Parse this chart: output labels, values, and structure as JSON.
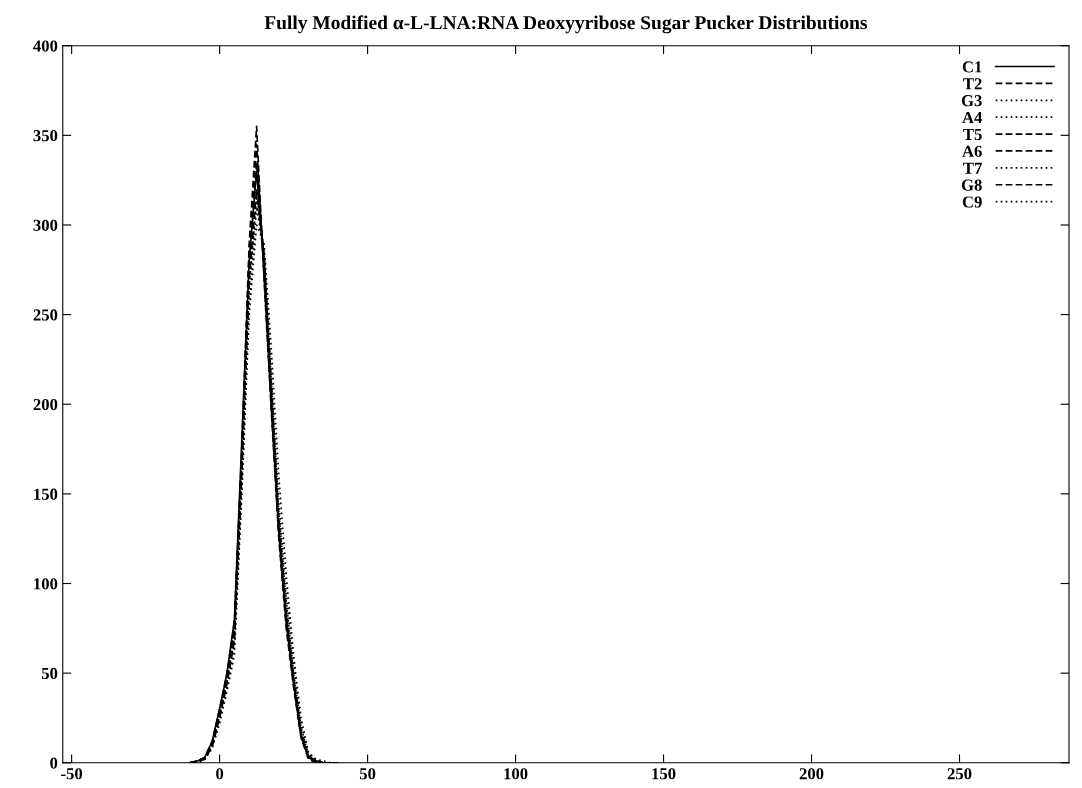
{
  "chart_data": {
    "type": "line",
    "title": "Fully Modified α-L-LNA:RNA Deoxyyribose Sugar Pucker Distributions",
    "x": [
      -10,
      -7.5,
      -5,
      -2.5,
      0,
      2.5,
      5,
      7.5,
      10,
      12.5,
      15,
      17.5,
      20,
      22.5,
      25,
      27.5,
      30,
      32.5,
      35,
      37.5,
      40
    ],
    "series": [
      {
        "name": "C1",
        "color": "#000000",
        "line_style": "solid",
        "values": [
          0,
          1,
          3,
          12,
          30,
          50,
          80,
          180,
          280,
          330,
          280,
          200,
          130,
          80,
          45,
          15,
          3,
          1,
          0,
          0,
          0
        ]
      },
      {
        "name": "T2",
        "color": "#000000",
        "line_style": "dashed",
        "values": [
          0,
          1,
          2,
          10,
          28,
          48,
          75,
          170,
          270,
          320,
          285,
          210,
          135,
          85,
          48,
          18,
          4,
          1,
          0,
          0,
          0
        ]
      },
      {
        "name": "G3",
        "color": "#000000",
        "line_style": "dotted",
        "values": [
          0,
          0,
          2,
          8,
          22,
          40,
          60,
          150,
          250,
          300,
          290,
          230,
          160,
          105,
          60,
          25,
          6,
          2,
          1,
          0,
          0
        ]
      },
      {
        "name": "A4",
        "color": "#000000",
        "line_style": "dotted",
        "values": [
          0,
          1,
          3,
          11,
          26,
          45,
          70,
          165,
          265,
          315,
          280,
          205,
          130,
          82,
          46,
          16,
          3,
          1,
          0,
          0,
          0
        ]
      },
      {
        "name": "T5",
        "color": "#000000",
        "line_style": "dashed",
        "values": [
          0,
          1,
          2,
          9,
          25,
          44,
          68,
          160,
          275,
          335,
          275,
          200,
          128,
          78,
          44,
          15,
          3,
          1,
          0,
          0,
          0
        ]
      },
      {
        "name": "A6",
        "color": "#000000",
        "line_style": "dashed",
        "values": [
          0,
          1,
          3,
          12,
          30,
          50,
          78,
          175,
          290,
          355,
          270,
          195,
          125,
          75,
          42,
          14,
          2,
          0,
          0,
          0,
          0
        ]
      },
      {
        "name": "T7",
        "color": "#000000",
        "line_style": "dotted",
        "values": [
          0,
          0,
          2,
          9,
          24,
          42,
          65,
          155,
          255,
          310,
          285,
          215,
          145,
          95,
          55,
          22,
          5,
          2,
          0,
          0,
          0
        ]
      },
      {
        "name": "G8",
        "color": "#000000",
        "line_style": "dashed",
        "values": [
          0,
          1,
          3,
          11,
          29,
          49,
          76,
          172,
          285,
          345,
          272,
          198,
          128,
          78,
          44,
          15,
          3,
          1,
          0,
          0,
          0
        ]
      },
      {
        "name": "C9",
        "color": "#000000",
        "line_style": "dotted",
        "values": [
          0,
          1,
          2,
          10,
          27,
          46,
          72,
          165,
          268,
          318,
          283,
          212,
          140,
          90,
          50,
          20,
          4,
          1,
          0,
          0,
          0
        ]
      }
    ],
    "xlim": [
      -53,
      287
    ],
    "xticks": [
      -50,
      0,
      50,
      100,
      150,
      200,
      250
    ],
    "ylim": [
      0,
      400
    ],
    "yticks": [
      0,
      50,
      100,
      150,
      200,
      250,
      300,
      350,
      400
    ],
    "legend": "top right",
    "grid": false
  }
}
